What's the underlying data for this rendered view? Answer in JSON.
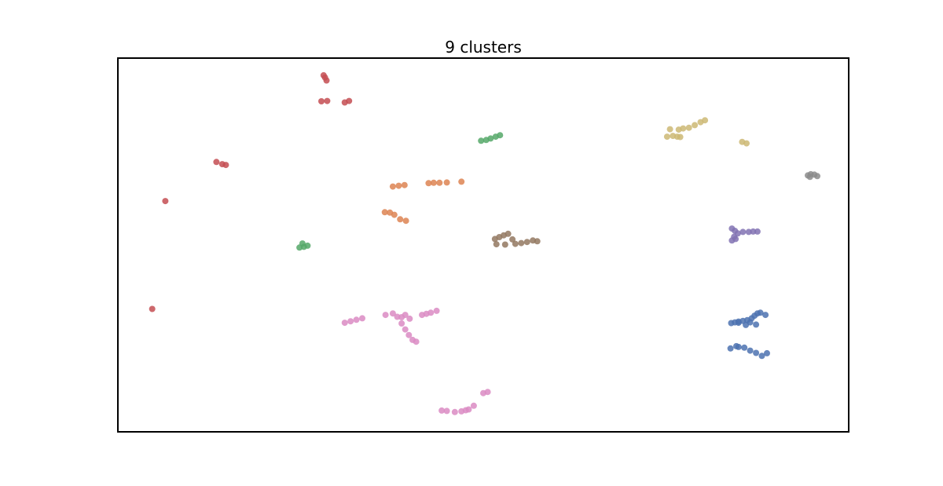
{
  "chart_data": {
    "type": "scatter",
    "title": "9 clusters",
    "xlabel": "",
    "ylabel": "",
    "axes_ticks": false,
    "xlim": [
      0,
      100
    ],
    "ylim": [
      0,
      100
    ],
    "grid": false,
    "series": [
      {
        "color": "#4c72b0",
        "points": [
          [
            84.0,
            29.0
          ],
          [
            84.5,
            29.2
          ],
          [
            85.0,
            29.4
          ],
          [
            85.6,
            29.6
          ],
          [
            86.2,
            29.8
          ],
          [
            86.8,
            30.3
          ],
          [
            87.2,
            31.0
          ],
          [
            87.6,
            31.6
          ],
          [
            88.0,
            31.8
          ],
          [
            88.7,
            31.2
          ],
          [
            85.0,
            29.1
          ],
          [
            86.6,
            29.2
          ],
          [
            87.4,
            28.6
          ],
          [
            86.0,
            28.5
          ],
          [
            83.9,
            22.2
          ],
          [
            85.0,
            22.6
          ],
          [
            85.8,
            22.4
          ],
          [
            86.6,
            21.6
          ],
          [
            87.4,
            21.0
          ],
          [
            88.2,
            20.2
          ],
          [
            88.9,
            20.9
          ],
          [
            84.7,
            22.8
          ]
        ]
      },
      {
        "color": "#dd8452",
        "points": [
          [
            37.6,
            65.7
          ],
          [
            38.4,
            65.9
          ],
          [
            39.2,
            66.1
          ],
          [
            42.5,
            66.6
          ],
          [
            43.2,
            66.7
          ],
          [
            44.0,
            66.7
          ],
          [
            45.0,
            66.8
          ],
          [
            47.0,
            67.0
          ],
          [
            36.5,
            58.8
          ],
          [
            37.2,
            58.7
          ],
          [
            37.8,
            58.1
          ],
          [
            38.6,
            56.9
          ],
          [
            39.4,
            56.5
          ]
        ]
      },
      {
        "color": "#55a868",
        "points": [
          [
            49.7,
            78.0
          ],
          [
            50.4,
            78.2
          ],
          [
            51.0,
            78.6
          ],
          [
            51.7,
            79.1
          ],
          [
            52.3,
            79.5
          ],
          [
            24.8,
            49.3
          ],
          [
            25.4,
            49.5
          ],
          [
            25.9,
            49.8
          ],
          [
            25.2,
            50.4
          ]
        ]
      },
      {
        "color": "#c44e52",
        "points": [
          [
            28.3,
            95.0
          ],
          [
            28.5,
            94.2
          ],
          [
            28.1,
            95.6
          ],
          [
            27.8,
            88.6
          ],
          [
            28.6,
            88.7
          ],
          [
            31.0,
            88.3
          ],
          [
            31.6,
            88.7
          ],
          [
            13.4,
            72.3
          ],
          [
            14.2,
            71.7
          ],
          [
            14.7,
            71.5
          ],
          [
            6.4,
            61.8
          ],
          [
            4.6,
            32.8
          ]
        ]
      },
      {
        "color": "#8172b3",
        "points": [
          [
            84.1,
            54.4
          ],
          [
            84.5,
            53.8
          ],
          [
            84.9,
            53.1
          ],
          [
            84.6,
            51.6
          ],
          [
            84.1,
            51.2
          ],
          [
            84.4,
            52.2
          ],
          [
            85.6,
            53.5
          ],
          [
            86.4,
            53.5
          ],
          [
            87.0,
            53.6
          ],
          [
            87.6,
            53.6
          ]
        ]
      },
      {
        "color": "#937860",
        "points": [
          [
            51.6,
            51.6
          ],
          [
            52.2,
            52.1
          ],
          [
            52.8,
            52.6
          ],
          [
            53.4,
            53.0
          ],
          [
            51.8,
            50.2
          ],
          [
            53.0,
            50.1
          ],
          [
            54.4,
            50.3
          ],
          [
            55.2,
            50.5
          ],
          [
            56.0,
            50.8
          ],
          [
            56.8,
            51.2
          ],
          [
            57.4,
            51.0
          ],
          [
            54.0,
            51.5
          ]
        ]
      },
      {
        "color": "#da8bc3",
        "points": [
          [
            31.0,
            29.1
          ],
          [
            31.8,
            29.5
          ],
          [
            32.6,
            29.9
          ],
          [
            33.4,
            30.3
          ],
          [
            36.6,
            31.2
          ],
          [
            37.6,
            31.6
          ],
          [
            38.2,
            30.7
          ],
          [
            38.8,
            30.6
          ],
          [
            39.3,
            31.2
          ],
          [
            39.9,
            30.2
          ],
          [
            41.6,
            31.2
          ],
          [
            42.2,
            31.5
          ],
          [
            42.8,
            31.8
          ],
          [
            43.6,
            32.3
          ],
          [
            38.8,
            28.9
          ],
          [
            39.3,
            27.3
          ],
          [
            39.8,
            25.8
          ],
          [
            40.3,
            24.5
          ],
          [
            40.8,
            24.0
          ],
          [
            44.3,
            5.5
          ],
          [
            45.0,
            5.4
          ],
          [
            46.1,
            5.1
          ],
          [
            47.0,
            5.3
          ],
          [
            47.6,
            5.6
          ],
          [
            48.0,
            5.8
          ],
          [
            48.7,
            6.8
          ],
          [
            50.0,
            10.2
          ],
          [
            50.6,
            10.5
          ]
        ]
      },
      {
        "color": "#8c8c8c",
        "points": [
          [
            94.5,
            68.7
          ],
          [
            94.9,
            69.0
          ],
          [
            95.4,
            68.9
          ],
          [
            95.8,
            68.5
          ],
          [
            94.8,
            68.3
          ]
        ]
      },
      {
        "color": "#ccb974",
        "points": [
          [
            75.2,
            79.1
          ],
          [
            76.0,
            79.3
          ],
          [
            76.6,
            79.1
          ],
          [
            76.8,
            81.0
          ],
          [
            75.6,
            81.1
          ],
          [
            77.4,
            81.3
          ],
          [
            78.2,
            81.5
          ],
          [
            79.0,
            82.2
          ],
          [
            79.8,
            83.0
          ],
          [
            80.4,
            83.5
          ],
          [
            77.0,
            79.0
          ],
          [
            85.5,
            77.7
          ],
          [
            86.1,
            77.3
          ]
        ]
      }
    ]
  }
}
